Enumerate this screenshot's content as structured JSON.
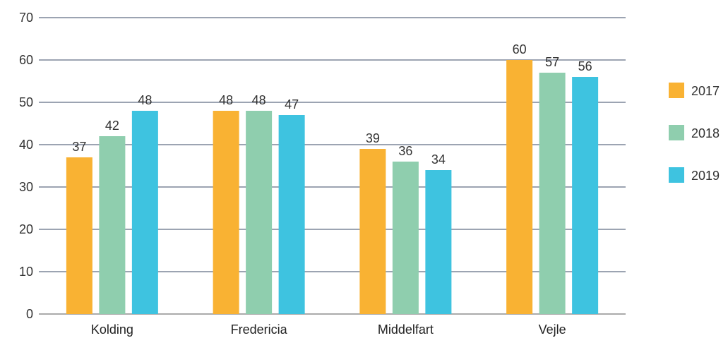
{
  "chart_data": {
    "type": "bar",
    "categories": [
      "Kolding",
      "Fredericia",
      "Middelfart",
      "Vejle"
    ],
    "series": [
      {
        "name": "2017",
        "values": [
          37,
          48,
          39,
          60
        ],
        "color": "#f9b233"
      },
      {
        "name": "2018",
        "values": [
          42,
          48,
          36,
          57
        ],
        "color": "#8fceae"
      },
      {
        "name": "2019",
        "values": [
          48,
          47,
          34,
          56
        ],
        "color": "#3ec3e0"
      }
    ],
    "ylim": [
      0,
      70
    ],
    "yticks": [
      0,
      10,
      20,
      30,
      40,
      50,
      60,
      70
    ],
    "grid": true,
    "legend": "right",
    "data_labels": true,
    "title": "",
    "xlabel": "",
    "ylabel": ""
  }
}
